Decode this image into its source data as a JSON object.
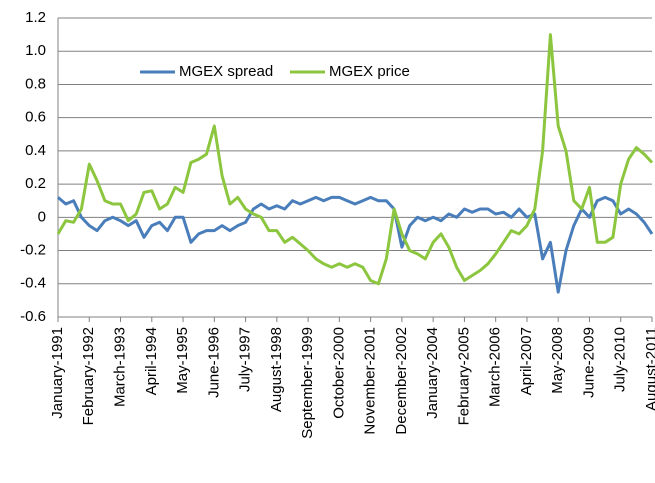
{
  "chart_data": {
    "type": "line",
    "categories": [
      "January-1991",
      null,
      null,
      null,
      "February-1992",
      null,
      null,
      null,
      "March-1993",
      null,
      null,
      null,
      "April-1994",
      null,
      null,
      null,
      "May-1995",
      null,
      null,
      null,
      "June-1996",
      null,
      null,
      null,
      "July-1997",
      null,
      null,
      null,
      "August-1998",
      null,
      null,
      null,
      "September-1999",
      null,
      null,
      null,
      "October-2000",
      null,
      null,
      null,
      "November-2001",
      null,
      null,
      null,
      "December-2002",
      null,
      null,
      null,
      "January-2004",
      null,
      null,
      null,
      "February-2005",
      null,
      null,
      null,
      "March-2006",
      null,
      null,
      null,
      "April-2007",
      null,
      null,
      null,
      "May-2008",
      null,
      null,
      null,
      "June-2009",
      null,
      null,
      null,
      "July-2010",
      null,
      null,
      null,
      "August-2011"
    ],
    "series": [
      {
        "name": "MGEX spread",
        "color": "#4a7ebb",
        "values": [
          0.12,
          0.08,
          0.1,
          0.0,
          -0.05,
          -0.08,
          -0.02,
          0.0,
          -0.02,
          -0.05,
          -0.02,
          -0.12,
          -0.05,
          -0.03,
          -0.08,
          0.0,
          0.0,
          -0.15,
          -0.1,
          -0.08,
          -0.08,
          -0.05,
          -0.08,
          -0.05,
          -0.03,
          0.05,
          0.08,
          0.05,
          0.07,
          0.05,
          0.1,
          0.08,
          0.1,
          0.12,
          0.1,
          0.12,
          0.12,
          0.1,
          0.08,
          0.1,
          0.12,
          0.1,
          0.1,
          0.05,
          -0.18,
          -0.05,
          0.0,
          -0.02,
          0.0,
          -0.02,
          0.02,
          0.0,
          0.05,
          0.03,
          0.05,
          0.05,
          0.02,
          0.03,
          0.0,
          0.05,
          0.0,
          0.02,
          -0.25,
          -0.15,
          -0.45,
          -0.2,
          -0.05,
          0.05,
          0.0,
          0.1,
          0.12,
          0.1,
          0.02,
          0.05,
          0.02,
          -0.03,
          -0.1
        ]
      },
      {
        "name": "MGEX price",
        "color": "#8cc63f",
        "values": [
          -0.1,
          -0.02,
          -0.03,
          0.05,
          0.32,
          0.22,
          0.1,
          0.08,
          0.08,
          -0.02,
          0.02,
          0.15,
          0.16,
          0.05,
          0.08,
          0.18,
          0.15,
          0.33,
          0.35,
          0.38,
          0.55,
          0.25,
          0.08,
          0.12,
          0.05,
          0.02,
          0.0,
          -0.08,
          -0.08,
          -0.15,
          -0.12,
          -0.16,
          -0.2,
          -0.25,
          -0.28,
          -0.3,
          -0.28,
          -0.3,
          -0.28,
          -0.3,
          -0.38,
          -0.4,
          -0.25,
          0.05,
          -0.1,
          -0.2,
          -0.22,
          -0.25,
          -0.15,
          -0.1,
          -0.18,
          -0.3,
          -0.38,
          -0.35,
          -0.32,
          -0.28,
          -0.22,
          -0.15,
          -0.08,
          -0.1,
          -0.05,
          0.05,
          0.4,
          1.1,
          0.55,
          0.4,
          0.1,
          0.05,
          0.18,
          -0.15,
          -0.15,
          -0.12,
          0.2,
          0.35,
          0.42,
          0.38,
          0.33
        ]
      }
    ],
    "ylim": [
      -0.6,
      1.2
    ],
    "yticks": [
      -0.6,
      -0.4,
      -0.2,
      0,
      0.2,
      0.4,
      0.6,
      0.8,
      {
        "value": 1,
        "label": "1.0"
      },
      1.2
    ],
    "grid": true
  }
}
